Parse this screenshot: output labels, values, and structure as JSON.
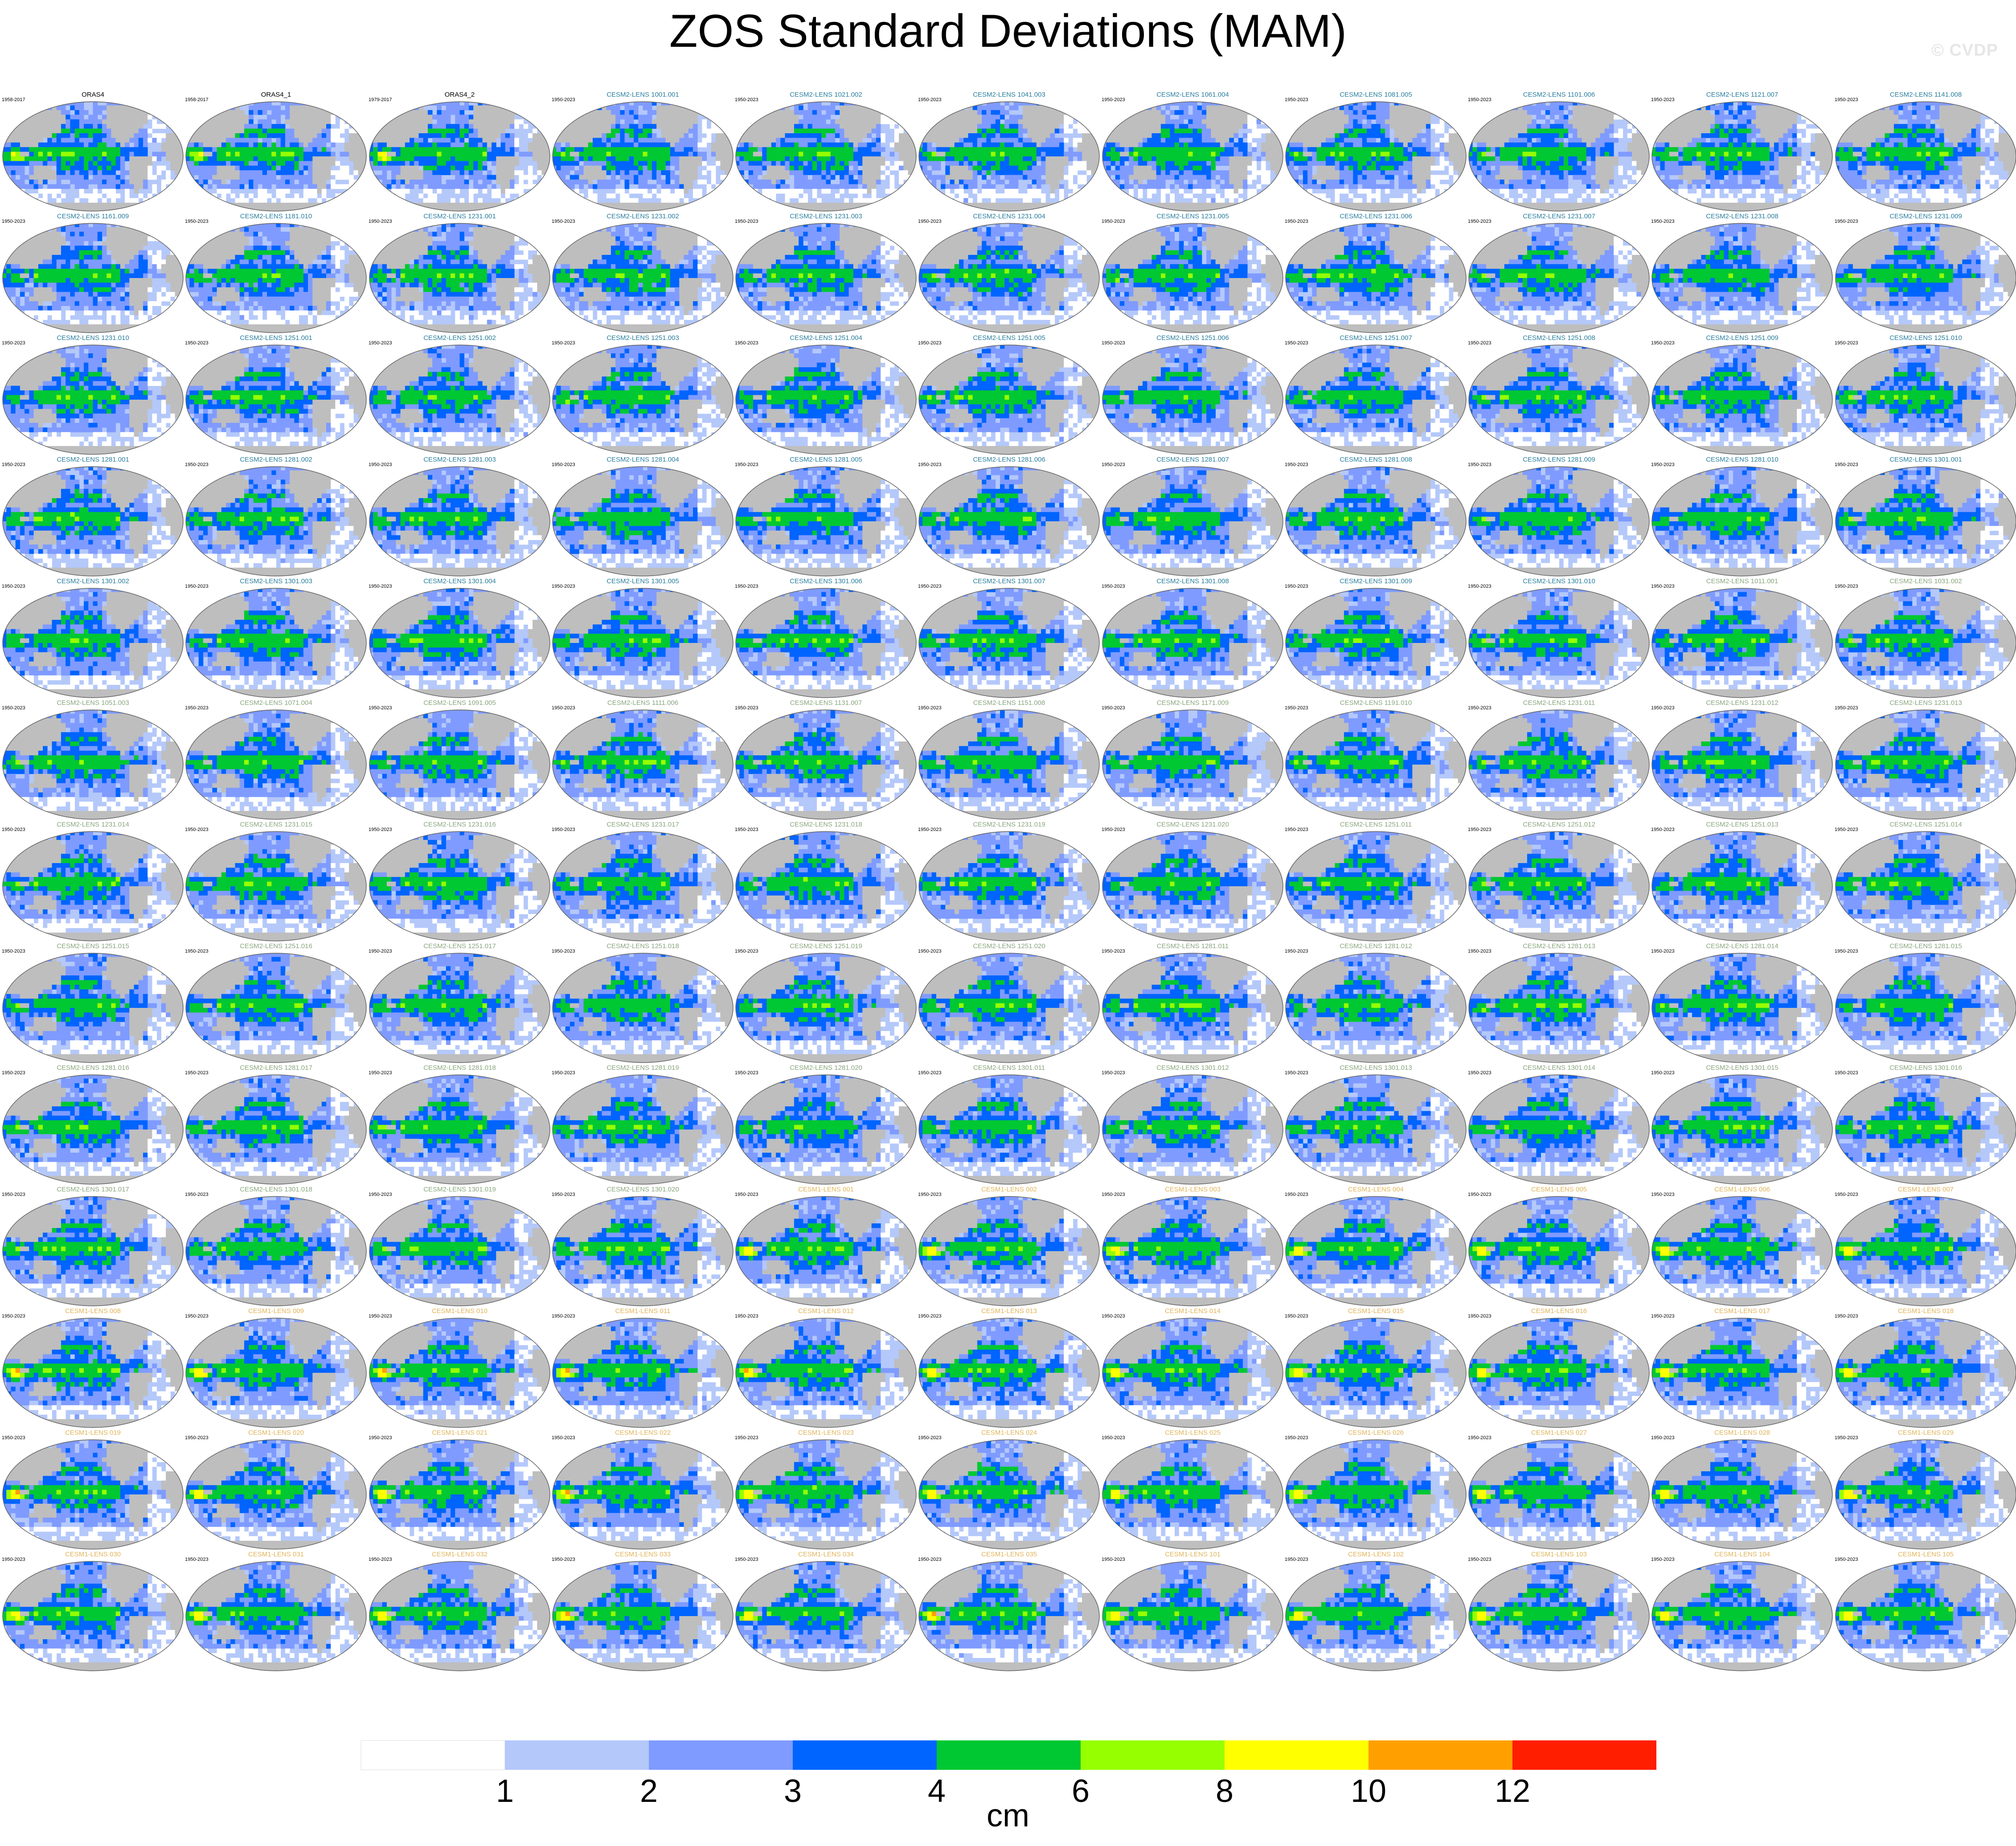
{
  "title": "ZOS Standard Deviations (MAM)",
  "credit": "© CVDP",
  "colors": {
    "title_cesm2": "#2a7f9e",
    "title_cesm2_faded": "#8aa67e",
    "title_cesm1": "#e0b45a",
    "title_obs": "#000000",
    "land": "#bebebe",
    "coast": "#666666"
  },
  "chart_data": {
    "type": "heatmap",
    "title": "ZOS Standard Deviations (MAM)",
    "grid": {
      "rows": 13,
      "cols": 11
    },
    "colorbar": {
      "unit": "cm",
      "levels": [
        1,
        2,
        3,
        4,
        6,
        8,
        10,
        12
      ],
      "colors": [
        "#ffffff",
        "#b4c8fa",
        "#7f9bff",
        "#0064ff",
        "#00c832",
        "#96ff00",
        "#ffff00",
        "#ffa000",
        "#ff1e00"
      ]
    },
    "panels": [
      {
        "title": "ORAS4",
        "years": "1958-2017",
        "group": "obs"
      },
      {
        "title": "ORAS4_1",
        "years": "1958-2017",
        "group": "obs"
      },
      {
        "title": "ORAS4_2",
        "years": "1979-2017",
        "group": "obs"
      },
      {
        "title": "CESM2-LENS 1001.001",
        "years": "1950-2023",
        "group": "cesm2"
      },
      {
        "title": "CESM2-LENS 1021.002",
        "years": "1950-2023",
        "group": "cesm2"
      },
      {
        "title": "CESM2-LENS 1041.003",
        "years": "1950-2023",
        "group": "cesm2"
      },
      {
        "title": "CESM2-LENS 1061.004",
        "years": "1950-2023",
        "group": "cesm2"
      },
      {
        "title": "CESM2-LENS 1081.005",
        "years": "1950-2023",
        "group": "cesm2"
      },
      {
        "title": "CESM2-LENS 1101.006",
        "years": "1950-2023",
        "group": "cesm2"
      },
      {
        "title": "CESM2-LENS 1121.007",
        "years": "1950-2023",
        "group": "cesm2"
      },
      {
        "title": "CESM2-LENS 1141.008",
        "years": "1950-2023",
        "group": "cesm2"
      },
      {
        "title": "CESM2-LENS 1161.009",
        "years": "1950-2023",
        "group": "cesm2"
      },
      {
        "title": "CESM2-LENS 1181.010",
        "years": "1950-2023",
        "group": "cesm2"
      },
      {
        "title": "CESM2-LENS 1231.001",
        "years": "1950-2023",
        "group": "cesm2"
      },
      {
        "title": "CESM2-LENS 1231.002",
        "years": "1950-2023",
        "group": "cesm2"
      },
      {
        "title": "CESM2-LENS 1231.003",
        "years": "1950-2023",
        "group": "cesm2"
      },
      {
        "title": "CESM2-LENS 1231.004",
        "years": "1950-2023",
        "group": "cesm2"
      },
      {
        "title": "CESM2-LENS 1231.005",
        "years": "1950-2023",
        "group": "cesm2"
      },
      {
        "title": "CESM2-LENS 1231.006",
        "years": "1950-2023",
        "group": "cesm2"
      },
      {
        "title": "CESM2-LENS 1231.007",
        "years": "1950-2023",
        "group": "cesm2"
      },
      {
        "title": "CESM2-LENS 1231.008",
        "years": "1950-2023",
        "group": "cesm2"
      },
      {
        "title": "CESM2-LENS 1231.009",
        "years": "1950-2023",
        "group": "cesm2"
      },
      {
        "title": "CESM2-LENS 1231.010",
        "years": "1950-2023",
        "group": "cesm2"
      },
      {
        "title": "CESM2-LENS 1251.001",
        "years": "1950-2023",
        "group": "cesm2"
      },
      {
        "title": "CESM2-LENS 1251.002",
        "years": "1950-2023",
        "group": "cesm2"
      },
      {
        "title": "CESM2-LENS 1251.003",
        "years": "1950-2023",
        "group": "cesm2"
      },
      {
        "title": "CESM2-LENS 1251.004",
        "years": "1950-2023",
        "group": "cesm2"
      },
      {
        "title": "CESM2-LENS 1251.005",
        "years": "1950-2023",
        "group": "cesm2"
      },
      {
        "title": "CESM2-LENS 1251.006",
        "years": "1950-2023",
        "group": "cesm2"
      },
      {
        "title": "CESM2-LENS 1251.007",
        "years": "1950-2023",
        "group": "cesm2"
      },
      {
        "title": "CESM2-LENS 1251.008",
        "years": "1950-2023",
        "group": "cesm2"
      },
      {
        "title": "CESM2-LENS 1251.009",
        "years": "1950-2023",
        "group": "cesm2"
      },
      {
        "title": "CESM2-LENS 1251.010",
        "years": "1950-2023",
        "group": "cesm2"
      },
      {
        "title": "CESM2-LENS 1281.001",
        "years": "1950-2023",
        "group": "cesm2"
      },
      {
        "title": "CESM2-LENS 1281.002",
        "years": "1950-2023",
        "group": "cesm2"
      },
      {
        "title": "CESM2-LENS 1281.003",
        "years": "1950-2023",
        "group": "cesm2"
      },
      {
        "title": "CESM2-LENS 1281.004",
        "years": "1950-2023",
        "group": "cesm2"
      },
      {
        "title": "CESM2-LENS 1281.005",
        "years": "1950-2023",
        "group": "cesm2"
      },
      {
        "title": "CESM2-LENS 1281.006",
        "years": "1950-2023",
        "group": "cesm2"
      },
      {
        "title": "CESM2-LENS 1281.007",
        "years": "1950-2023",
        "group": "cesm2"
      },
      {
        "title": "CESM2-LENS 1281.008",
        "years": "1950-2023",
        "group": "cesm2"
      },
      {
        "title": "CESM2-LENS 1281.009",
        "years": "1950-2023",
        "group": "cesm2"
      },
      {
        "title": "CESM2-LENS 1281.010",
        "years": "1950-2023",
        "group": "cesm2"
      },
      {
        "title": "CESM2-LENS 1301.001",
        "years": "1950-2023",
        "group": "cesm2"
      },
      {
        "title": "CESM2-LENS 1301.002",
        "years": "1950-2023",
        "group": "cesm2"
      },
      {
        "title": "CESM2-LENS 1301.003",
        "years": "1950-2023",
        "group": "cesm2"
      },
      {
        "title": "CESM2-LENS 1301.004",
        "years": "1950-2023",
        "group": "cesm2"
      },
      {
        "title": "CESM2-LENS 1301.005",
        "years": "1950-2023",
        "group": "cesm2"
      },
      {
        "title": "CESM2-LENS 1301.006",
        "years": "1950-2023",
        "group": "cesm2"
      },
      {
        "title": "CESM2-LENS 1301.007",
        "years": "1950-2023",
        "group": "cesm2"
      },
      {
        "title": "CESM2-LENS 1301.008",
        "years": "1950-2023",
        "group": "cesm2"
      },
      {
        "title": "CESM2-LENS 1301.009",
        "years": "1950-2023",
        "group": "cesm2"
      },
      {
        "title": "CESM2-LENS 1301.010",
        "years": "1950-2023",
        "group": "cesm2"
      },
      {
        "title": "CESM2-LENS 1011.001",
        "years": "1950-2023",
        "group": "cesm2b"
      },
      {
        "title": "CESM2-LENS 1031.002",
        "years": "1950-2023",
        "group": "cesm2b"
      },
      {
        "title": "CESM2-LENS 1051.003",
        "years": "1950-2023",
        "group": "cesm2b"
      },
      {
        "title": "CESM2-LENS 1071.004",
        "years": "1950-2023",
        "group": "cesm2b"
      },
      {
        "title": "CESM2-LENS 1091.005",
        "years": "1950-2023",
        "group": "cesm2b"
      },
      {
        "title": "CESM2-LENS 1111.006",
        "years": "1950-2023",
        "group": "cesm2b"
      },
      {
        "title": "CESM2-LENS 1131.007",
        "years": "1950-2023",
        "group": "cesm2b"
      },
      {
        "title": "CESM2-LENS 1151.008",
        "years": "1950-2023",
        "group": "cesm2b"
      },
      {
        "title": "CESM2-LENS 1171.009",
        "years": "1950-2023",
        "group": "cesm2b"
      },
      {
        "title": "CESM2-LENS 1191.010",
        "years": "1950-2023",
        "group": "cesm2b"
      },
      {
        "title": "CESM2-LENS 1231.011",
        "years": "1950-2023",
        "group": "cesm2b"
      },
      {
        "title": "CESM2-LENS 1231.012",
        "years": "1950-2023",
        "group": "cesm2b"
      },
      {
        "title": "CESM2-LENS 1231.013",
        "years": "1950-2023",
        "group": "cesm2b"
      },
      {
        "title": "CESM2-LENS 1231.014",
        "years": "1950-2023",
        "group": "cesm2b"
      },
      {
        "title": "CESM2-LENS 1231.015",
        "years": "1950-2023",
        "group": "cesm2b"
      },
      {
        "title": "CESM2-LENS 1231.016",
        "years": "1950-2023",
        "group": "cesm2b"
      },
      {
        "title": "CESM2-LENS 1231.017",
        "years": "1950-2023",
        "group": "cesm2b"
      },
      {
        "title": "CESM2-LENS 1231.018",
        "years": "1950-2023",
        "group": "cesm2b"
      },
      {
        "title": "CESM2-LENS 1231.019",
        "years": "1950-2023",
        "group": "cesm2b"
      },
      {
        "title": "CESM2-LENS 1231.020",
        "years": "1950-2023",
        "group": "cesm2b"
      },
      {
        "title": "CESM2-LENS 1251.011",
        "years": "1950-2023",
        "group": "cesm2b"
      },
      {
        "title": "CESM2-LENS 1251.012",
        "years": "1950-2023",
        "group": "cesm2b"
      },
      {
        "title": "CESM2-LENS 1251.013",
        "years": "1950-2023",
        "group": "cesm2b"
      },
      {
        "title": "CESM2-LENS 1251.014",
        "years": "1950-2023",
        "group": "cesm2b"
      },
      {
        "title": "CESM2-LENS 1251.015",
        "years": "1950-2023",
        "group": "cesm2b"
      },
      {
        "title": "CESM2-LENS 1251.016",
        "years": "1950-2023",
        "group": "cesm2b"
      },
      {
        "title": "CESM2-LENS 1251.017",
        "years": "1950-2023",
        "group": "cesm2b"
      },
      {
        "title": "CESM2-LENS 1251.018",
        "years": "1950-2023",
        "group": "cesm2b"
      },
      {
        "title": "CESM2-LENS 1251.019",
        "years": "1950-2023",
        "group": "cesm2b"
      },
      {
        "title": "CESM2-LENS 1251.020",
        "years": "1950-2023",
        "group": "cesm2b"
      },
      {
        "title": "CESM2-LENS 1281.011",
        "years": "1950-2023",
        "group": "cesm2b"
      },
      {
        "title": "CESM2-LENS 1281.012",
        "years": "1950-2023",
        "group": "cesm2b"
      },
      {
        "title": "CESM2-LENS 1281.013",
        "years": "1950-2023",
        "group": "cesm2b"
      },
      {
        "title": "CESM2-LENS 1281.014",
        "years": "1950-2023",
        "group": "cesm2b"
      },
      {
        "title": "CESM2-LENS 1281.015",
        "years": "1950-2023",
        "group": "cesm2b"
      },
      {
        "title": "CESM2-LENS 1281.016",
        "years": "1950-2023",
        "group": "cesm2b"
      },
      {
        "title": "CESM2-LENS 1281.017",
        "years": "1950-2023",
        "group": "cesm2b"
      },
      {
        "title": "CESM2-LENS 1281.018",
        "years": "1950-2023",
        "group": "cesm2b"
      },
      {
        "title": "CESM2-LENS 1281.019",
        "years": "1950-2023",
        "group": "cesm2b"
      },
      {
        "title": "CESM2-LENS 1281.020",
        "years": "1950-2023",
        "group": "cesm2b"
      },
      {
        "title": "CESM2-LENS 1301.011",
        "years": "1950-2023",
        "group": "cesm2b"
      },
      {
        "title": "CESM2-LENS 1301.012",
        "years": "1950-2023",
        "group": "cesm2b"
      },
      {
        "title": "CESM2-LENS 1301.013",
        "years": "1950-2023",
        "group": "cesm2b"
      },
      {
        "title": "CESM2-LENS 1301.014",
        "years": "1950-2023",
        "group": "cesm2b"
      },
      {
        "title": "CESM2-LENS 1301.015",
        "years": "1950-2023",
        "group": "cesm2b"
      },
      {
        "title": "CESM2-LENS 1301.016",
        "years": "1950-2023",
        "group": "cesm2b"
      },
      {
        "title": "CESM2-LENS 1301.017",
        "years": "1950-2023",
        "group": "cesm2b"
      },
      {
        "title": "CESM2-LENS 1301.018",
        "years": "1950-2023",
        "group": "cesm2b"
      },
      {
        "title": "CESM2-LENS 1301.019",
        "years": "1950-2023",
        "group": "cesm2b"
      },
      {
        "title": "CESM2-LENS 1301.020",
        "years": "1950-2023",
        "group": "cesm2b"
      },
      {
        "title": "CESM1-LENS 001",
        "years": "1950-2023",
        "group": "cesm1"
      },
      {
        "title": "CESM1-LENS 002",
        "years": "1950-2023",
        "group": "cesm1"
      },
      {
        "title": "CESM1-LENS 003",
        "years": "1950-2023",
        "group": "cesm1"
      },
      {
        "title": "CESM1-LENS 004",
        "years": "1950-2023",
        "group": "cesm1"
      },
      {
        "title": "CESM1-LENS 005",
        "years": "1950-2023",
        "group": "cesm1"
      },
      {
        "title": "CESM1-LENS 006",
        "years": "1950-2023",
        "group": "cesm1"
      },
      {
        "title": "CESM1-LENS 007",
        "years": "1950-2023",
        "group": "cesm1"
      },
      {
        "title": "CESM1-LENS 008",
        "years": "1950-2023",
        "group": "cesm1"
      },
      {
        "title": "CESM1-LENS 009",
        "years": "1950-2023",
        "group": "cesm1"
      },
      {
        "title": "CESM1-LENS 010",
        "years": "1950-2023",
        "group": "cesm1"
      },
      {
        "title": "CESM1-LENS 011",
        "years": "1950-2023",
        "group": "cesm1"
      },
      {
        "title": "CESM1-LENS 012",
        "years": "1950-2023",
        "group": "cesm1"
      },
      {
        "title": "CESM1-LENS 013",
        "years": "1950-2023",
        "group": "cesm1"
      },
      {
        "title": "CESM1-LENS 014",
        "years": "1950-2023",
        "group": "cesm1"
      },
      {
        "title": "CESM1-LENS 015",
        "years": "1950-2023",
        "group": "cesm1"
      },
      {
        "title": "CESM1-LENS 016",
        "years": "1950-2023",
        "group": "cesm1"
      },
      {
        "title": "CESM1-LENS 017",
        "years": "1950-2023",
        "group": "cesm1"
      },
      {
        "title": "CESM1-LENS 018",
        "years": "1950-2023",
        "group": "cesm1"
      },
      {
        "title": "CESM1-LENS 019",
        "years": "1950-2023",
        "group": "cesm1"
      },
      {
        "title": "CESM1-LENS 020",
        "years": "1950-2023",
        "group": "cesm1"
      },
      {
        "title": "CESM1-LENS 021",
        "years": "1950-2023",
        "group": "cesm1"
      },
      {
        "title": "CESM1-LENS 022",
        "years": "1950-2023",
        "group": "cesm1"
      },
      {
        "title": "CESM1-LENS 023",
        "years": "1950-2023",
        "group": "cesm1"
      },
      {
        "title": "CESM1-LENS 024",
        "years": "1950-2023",
        "group": "cesm1"
      },
      {
        "title": "CESM1-LENS 025",
        "years": "1950-2023",
        "group": "cesm1"
      },
      {
        "title": "CESM1-LENS 026",
        "years": "1950-2023",
        "group": "cesm1"
      },
      {
        "title": "CESM1-LENS 027",
        "years": "1950-2023",
        "group": "cesm1"
      },
      {
        "title": "CESM1-LENS 028",
        "years": "1950-2023",
        "group": "cesm1"
      },
      {
        "title": "CESM1-LENS 029",
        "years": "1950-2023",
        "group": "cesm1"
      },
      {
        "title": "CESM1-LENS 030",
        "years": "1950-2023",
        "group": "cesm1"
      },
      {
        "title": "CESM1-LENS 031",
        "years": "1950-2023",
        "group": "cesm1"
      },
      {
        "title": "CESM1-LENS 032",
        "years": "1950-2023",
        "group": "cesm1"
      },
      {
        "title": "CESM1-LENS 033",
        "years": "1950-2023",
        "group": "cesm1"
      },
      {
        "title": "CESM1-LENS 034",
        "years": "1950-2023",
        "group": "cesm1"
      },
      {
        "title": "CESM1-LENS 035",
        "years": "1950-2023",
        "group": "cesm1"
      },
      {
        "title": "CESM1-LENS 101",
        "years": "1950-2023",
        "group": "cesm1"
      },
      {
        "title": "CESM1-LENS 102",
        "years": "1950-2023",
        "group": "cesm1"
      },
      {
        "title": "CESM1-LENS 103",
        "years": "1950-2023",
        "group": "cesm1"
      },
      {
        "title": "CESM1-LENS 104",
        "years": "1950-2023",
        "group": "cesm1"
      },
      {
        "title": "CESM1-LENS 105",
        "years": "1950-2023",
        "group": "cesm1"
      }
    ]
  }
}
